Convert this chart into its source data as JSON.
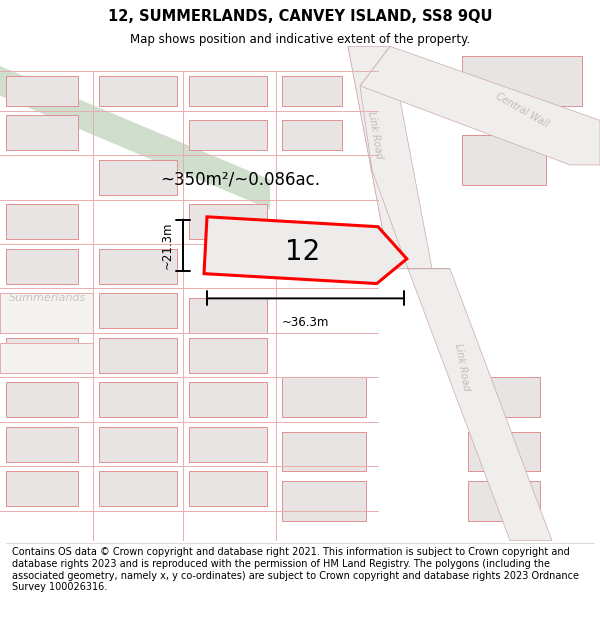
{
  "title": "12, SUMMERLANDS, CANVEY ISLAND, SS8 9QU",
  "subtitle": "Map shows position and indicative extent of the property.",
  "footer": "Contains OS data © Crown copyright and database right 2021. This information is subject to Crown copyright and database rights 2023 and is reproduced with the permission of HM Land Registry. The polygons (including the associated geometry, namely x, y co-ordinates) are subject to Crown copyright and database rights 2023 Ordnance Survey 100026316.",
  "area_label": "~350m²/~0.086ac.",
  "number_label": "12",
  "width_label": "~36.3m",
  "height_label": "~21.3m",
  "map_bg": "#f7f4f4",
  "building_fill": "#e8e4e4",
  "building_edge": "#e09090",
  "road_fill": "#ffffff",
  "green_fill": "#d0dece",
  "link_road_fill": "#f0eded",
  "link_road_edge": "#ccaaaa",
  "plot_edge": "#ff0000",
  "plot_fill": "#eeebeb",
  "title_fontsize": 10.5,
  "subtitle_fontsize": 8.5,
  "footer_fontsize": 7.0,
  "road_label_color": "#c0bbbb",
  "summerlands_color": "#c8c4c4"
}
